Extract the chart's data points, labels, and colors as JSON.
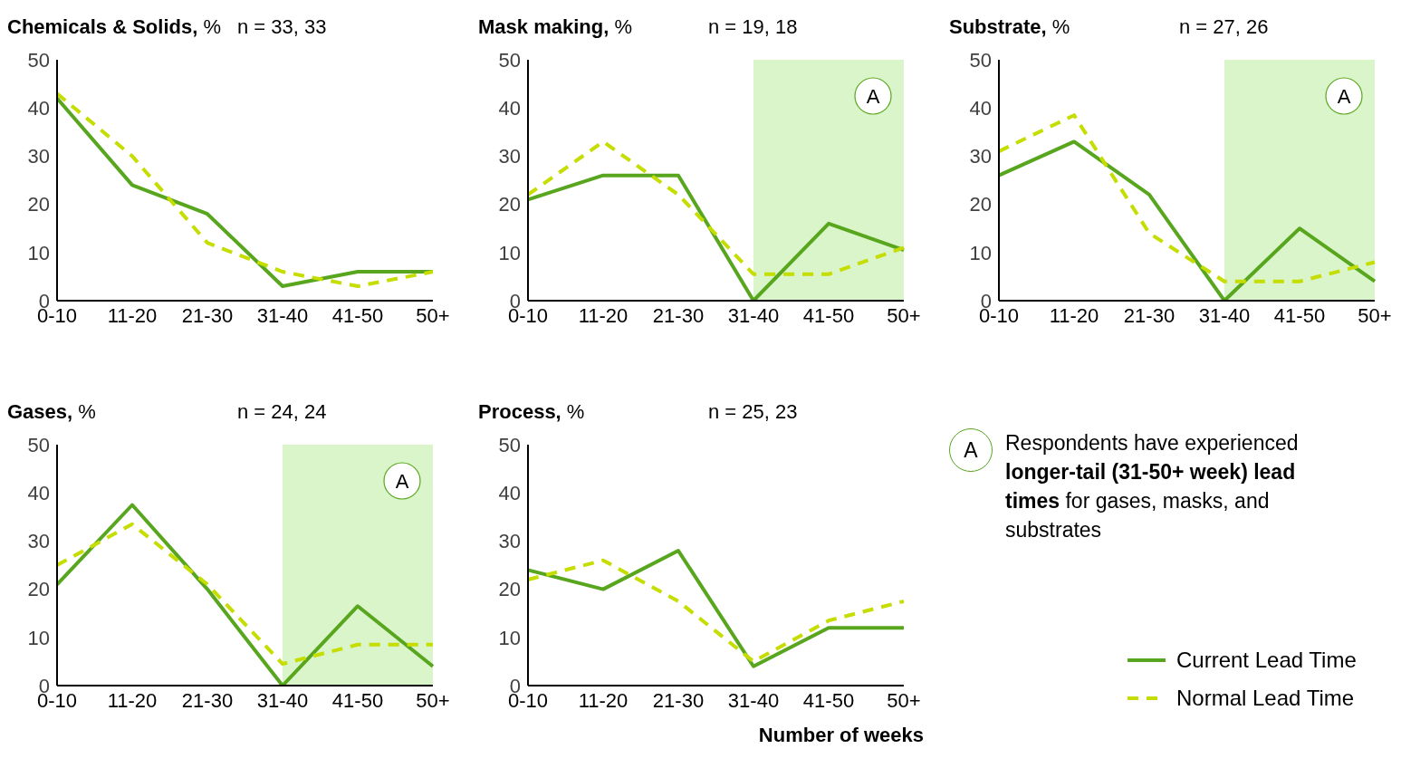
{
  "chart_data": [
    {
      "type": "line",
      "title": "Chemicals & Solids, %",
      "subtitle": "n = 33, 33",
      "categories": [
        "0-10",
        "11-20",
        "21-30",
        "31-40",
        "41-50",
        "50+"
      ],
      "ylim": [
        0,
        50
      ],
      "yticks": [
        0,
        10,
        20,
        30,
        40,
        50
      ],
      "series": [
        {
          "color": "#58a61e",
          "line_style": "solid",
          "values": [
            42,
            24,
            18,
            3,
            6,
            6
          ]
        },
        {
          "color": "#c5dd00",
          "line_style": "dashed",
          "values": [
            43,
            30,
            12,
            6,
            3,
            6
          ]
        }
      ]
    },
    {
      "type": "line",
      "title": "Mask making, %",
      "subtitle": "n = 19, 18",
      "categories": [
        "0-10",
        "11-20",
        "21-30",
        "31-40",
        "41-50",
        "50+"
      ],
      "ylim": [
        0,
        50
      ],
      "yticks": [
        0,
        10,
        20,
        30,
        40,
        50
      ],
      "series": [
        {
          "color": "#58a61e",
          "line_style": "solid",
          "values": [
            21,
            26,
            26,
            0,
            16,
            10.5
          ]
        },
        {
          "color": "#c5dd00",
          "line_style": "dashed",
          "values": [
            22,
            33,
            22,
            5.5,
            5.5,
            11
          ]
        }
      ],
      "bands": [
        {
          "axis": "x",
          "from": "31-40",
          "to": "50+",
          "label": "A",
          "color": "#daf5c9"
        }
      ]
    },
    {
      "type": "line",
      "title": "Substrate, %",
      "subtitle": "n = 27, 26",
      "categories": [
        "0-10",
        "11-20",
        "21-30",
        "31-40",
        "41-50",
        "50+"
      ],
      "ylim": [
        0,
        50
      ],
      "yticks": [
        0,
        10,
        20,
        30,
        40,
        50
      ],
      "series": [
        {
          "color": "#58a61e",
          "line_style": "solid",
          "values": [
            26,
            33,
            22,
            0,
            15,
            4
          ]
        },
        {
          "color": "#c5dd00",
          "line_style": "dashed",
          "values": [
            31,
            38.5,
            14,
            4,
            4,
            8
          ]
        }
      ],
      "bands": [
        {
          "axis": "x",
          "from": "31-40",
          "to": "50+",
          "label": "A",
          "color": "#daf5c9"
        }
      ]
    },
    {
      "type": "line",
      "title": "Gases, %",
      "subtitle": "n = 24, 24",
      "categories": [
        "0-10",
        "11-20",
        "21-30",
        "31-40",
        "41-50",
        "50+"
      ],
      "ylim": [
        0,
        50
      ],
      "yticks": [
        0,
        10,
        20,
        30,
        40,
        50
      ],
      "series": [
        {
          "color": "#58a61e",
          "line_style": "solid",
          "values": [
            21,
            37.5,
            20,
            0,
            16.5,
            4
          ]
        },
        {
          "color": "#c5dd00",
          "line_style": "dashed",
          "values": [
            25,
            33.5,
            21,
            4.5,
            8.5,
            8.5
          ]
        }
      ],
      "bands": [
        {
          "axis": "x",
          "from": "31-40",
          "to": "50+",
          "label": "A",
          "color": "#daf5c9"
        }
      ]
    },
    {
      "type": "line",
      "title": "Process, %",
      "subtitle": "n = 25, 23",
      "xlabel": "Number of weeks",
      "categories": [
        "0-10",
        "11-20",
        "21-30",
        "31-40",
        "41-50",
        "50+"
      ],
      "ylim": [
        0,
        50
      ],
      "yticks": [
        0,
        10,
        20,
        30,
        40,
        50
      ],
      "legend": "right",
      "series": [
        {
          "name": "Current Lead Time",
          "color": "#58a61e",
          "line_style": "solid",
          "values": [
            24,
            20,
            28,
            4,
            12,
            12
          ]
        },
        {
          "name": "Normal Lead Time",
          "color": "#c5dd00",
          "line_style": "dashed",
          "values": [
            22,
            26,
            17.5,
            5,
            13.5,
            17.5
          ]
        }
      ]
    },
    {
      "type": "other",
      "annotations": [
        "A",
        "Respondents have experienced",
        "longer-tail (31-50+ week) lead times",
        "for gases, masks, and substrates"
      ]
    }
  ]
}
